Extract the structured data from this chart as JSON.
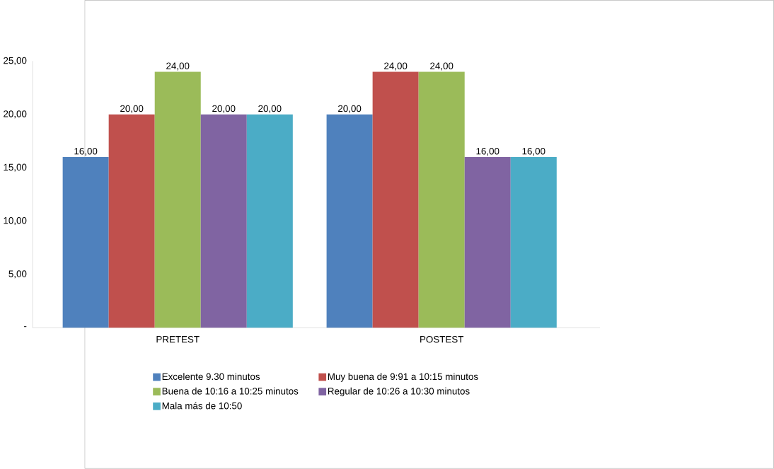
{
  "chart_data": {
    "type": "bar",
    "categories": [
      "PRETEST",
      "POSTEST"
    ],
    "series": [
      {
        "name": "Excelente 9.30 minutos",
        "color": "#4f81bd",
        "values": [
          16,
          20
        ],
        "value_labels": [
          "16,00",
          "20,00"
        ]
      },
      {
        "name": "Muy buena de 9:91 a 10:15 minutos",
        "color": "#c0504d",
        "values": [
          20,
          24
        ],
        "value_labels": [
          "20,00",
          "24,00"
        ]
      },
      {
        "name": "Buena de 10:16 a 10:25 minutos",
        "color": "#9bbb59",
        "values": [
          24,
          24
        ],
        "value_labels": [
          "24,00",
          "24,00"
        ]
      },
      {
        "name": "Regular de 10:26 a 10:30  minutos",
        "color": "#8064a2",
        "values": [
          20,
          16
        ],
        "value_labels": [
          "20,00",
          "16,00"
        ]
      },
      {
        "name": "Mala más de 10:50",
        "color": "#4bacc6",
        "values": [
          20,
          16
        ],
        "value_labels": [
          "20,00",
          "16,00"
        ]
      }
    ],
    "ylim": [
      0,
      25
    ],
    "yticks": [
      {
        "value": 0,
        "label": "-"
      },
      {
        "value": 5,
        "label": "5,00"
      },
      {
        "value": 10,
        "label": "10,00"
      },
      {
        "value": 15,
        "label": "15,00"
      },
      {
        "value": 20,
        "label": "20,00"
      },
      {
        "value": 25,
        "label": "25,00"
      }
    ],
    "grid": false,
    "legend": "bottom"
  }
}
